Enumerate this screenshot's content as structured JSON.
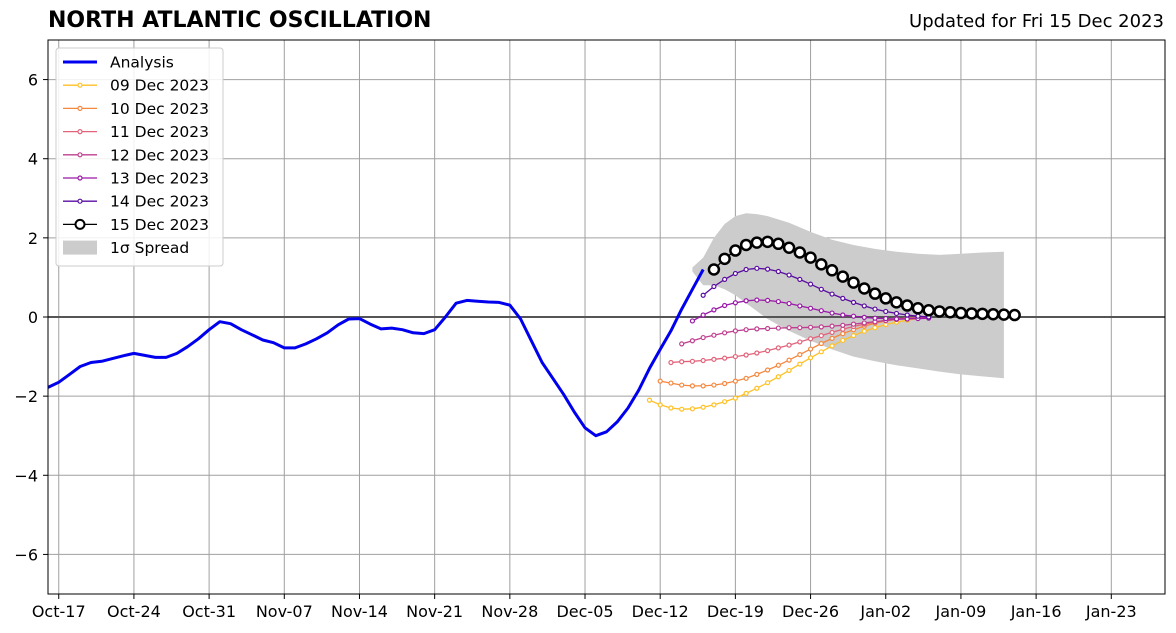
{
  "header": {
    "title": "NORTH ATLANTIC OSCILLATION",
    "updated": "Updated for Fri 15 Dec 2023"
  },
  "chart_data": {
    "type": "line",
    "title": "NORTH ATLANTIC OSCILLATION",
    "subtitle": "Updated for Fri 15 Dec 2023",
    "xlabel": "",
    "ylabel": "",
    "ylim": [
      -7,
      7
    ],
    "xlim": [
      "2023-10-16",
      "2024-01-28"
    ],
    "grid": true,
    "legend_position": "top-left",
    "x_ticks": [
      "Oct-17",
      "Oct-24",
      "Oct-31",
      "Nov-07",
      "Nov-14",
      "Nov-21",
      "Nov-28",
      "Dec-05",
      "Dec-12",
      "Dec-19",
      "Dec-26",
      "Jan-02",
      "Jan-09",
      "Jan-16",
      "Jan-23"
    ],
    "x_tick_dates": [
      "2023-10-17",
      "2023-10-24",
      "2023-10-31",
      "2023-11-07",
      "2023-11-14",
      "2023-11-21",
      "2023-11-28",
      "2023-12-05",
      "2023-12-12",
      "2023-12-19",
      "2023-12-26",
      "2024-01-02",
      "2024-01-09",
      "2024-01-16",
      "2024-01-23"
    ],
    "y_ticks": [
      "6",
      "4",
      "2",
      "0",
      "−2",
      "−4",
      "−6"
    ],
    "y_tick_values": [
      6,
      4,
      2,
      0,
      -2,
      -4,
      -6
    ],
    "zero_line": 0,
    "spread": {
      "name": "1σ Spread",
      "color": "#cccccc",
      "start": "2023-12-15",
      "points": [
        [
          "2023-12-15",
          1.25,
          1.15
        ],
        [
          "2023-12-16",
          1.5,
          0.8
        ],
        [
          "2023-12-17",
          2.0,
          0.8
        ],
        [
          "2023-12-18",
          2.35,
          0.7
        ],
        [
          "2023-12-19",
          2.55,
          0.55
        ],
        [
          "2023-12-20",
          2.62,
          0.35
        ],
        [
          "2023-12-21",
          2.6,
          0.15
        ],
        [
          "2023-12-22",
          2.55,
          -0.05
        ],
        [
          "2023-12-24",
          2.38,
          -0.35
        ],
        [
          "2023-12-26",
          2.15,
          -0.6
        ],
        [
          "2023-12-28",
          1.95,
          -0.82
        ],
        [
          "2023-12-30",
          1.82,
          -1.0
        ],
        [
          "2024-01-01",
          1.72,
          -1.12
        ],
        [
          "2024-01-03",
          1.65,
          -1.22
        ],
        [
          "2024-01-05",
          1.6,
          -1.3
        ],
        [
          "2024-01-07",
          1.57,
          -1.38
        ],
        [
          "2024-01-09",
          1.6,
          -1.45
        ],
        [
          "2024-01-11",
          1.63,
          -1.5
        ],
        [
          "2024-01-13",
          1.65,
          -1.55
        ]
      ]
    },
    "series": [
      {
        "name": "Analysis",
        "color": "#0000ee",
        "width": 3,
        "marker": "none",
        "points": [
          [
            "2023-10-16",
            -1.78
          ],
          [
            "2023-10-17",
            -1.65
          ],
          [
            "2023-10-18",
            -1.45
          ],
          [
            "2023-10-19",
            -1.25
          ],
          [
            "2023-10-20",
            -1.15
          ],
          [
            "2023-10-21",
            -1.12
          ],
          [
            "2023-10-22",
            -1.05
          ],
          [
            "2023-10-23",
            -0.98
          ],
          [
            "2023-10-24",
            -0.92
          ],
          [
            "2023-10-25",
            -0.97
          ],
          [
            "2023-10-26",
            -1.02
          ],
          [
            "2023-10-27",
            -1.02
          ],
          [
            "2023-10-28",
            -0.92
          ],
          [
            "2023-10-29",
            -0.75
          ],
          [
            "2023-10-30",
            -0.55
          ],
          [
            "2023-10-31",
            -0.32
          ],
          [
            "2023-11-01",
            -0.12
          ],
          [
            "2023-11-02",
            -0.17
          ],
          [
            "2023-11-03",
            -0.32
          ],
          [
            "2023-11-04",
            -0.45
          ],
          [
            "2023-11-05",
            -0.58
          ],
          [
            "2023-11-06",
            -0.65
          ],
          [
            "2023-11-07",
            -0.78
          ],
          [
            "2023-11-08",
            -0.78
          ],
          [
            "2023-11-09",
            -0.68
          ],
          [
            "2023-11-10",
            -0.55
          ],
          [
            "2023-11-11",
            -0.4
          ],
          [
            "2023-11-12",
            -0.2
          ],
          [
            "2023-11-13",
            -0.05
          ],
          [
            "2023-11-14",
            -0.04
          ],
          [
            "2023-11-15",
            -0.18
          ],
          [
            "2023-11-16",
            -0.3
          ],
          [
            "2023-11-17",
            -0.28
          ],
          [
            "2023-11-18",
            -0.32
          ],
          [
            "2023-11-19",
            -0.4
          ],
          [
            "2023-11-20",
            -0.42
          ],
          [
            "2023-11-21",
            -0.32
          ],
          [
            "2023-11-22",
            0.0
          ],
          [
            "2023-11-23",
            0.35
          ],
          [
            "2023-11-24",
            0.42
          ],
          [
            "2023-11-25",
            0.4
          ],
          [
            "2023-11-26",
            0.38
          ],
          [
            "2023-11-27",
            0.37
          ],
          [
            "2023-11-28",
            0.3
          ],
          [
            "2023-11-29",
            -0.05
          ],
          [
            "2023-11-30",
            -0.6
          ],
          [
            "2023-12-01",
            -1.15
          ],
          [
            "2023-12-02",
            -1.55
          ],
          [
            "2023-12-03",
            -1.95
          ],
          [
            "2023-12-04",
            -2.4
          ],
          [
            "2023-12-05",
            -2.8
          ],
          [
            "2023-12-06",
            -3.0
          ],
          [
            "2023-12-07",
            -2.9
          ],
          [
            "2023-12-08",
            -2.65
          ],
          [
            "2023-12-09",
            -2.3
          ],
          [
            "2023-12-10",
            -1.85
          ],
          [
            "2023-12-11",
            -1.3
          ],
          [
            "2023-12-12",
            -0.82
          ],
          [
            "2023-12-13",
            -0.35
          ],
          [
            "2023-12-14",
            0.2
          ],
          [
            "2023-12-15",
            0.7
          ],
          [
            "2023-12-16",
            1.2
          ]
        ]
      },
      {
        "name": "09 Dec 2023",
        "color": "#ffc125",
        "width": 1.3,
        "marker": "small",
        "start": "2023-12-11",
        "values": [
          -2.1,
          -2.22,
          -2.3,
          -2.33,
          -2.32,
          -2.28,
          -2.22,
          -2.14,
          -2.05,
          -1.93,
          -1.8,
          -1.66,
          -1.51,
          -1.35,
          -1.19,
          -1.03,
          -0.88,
          -0.73,
          -0.59,
          -0.47,
          -0.36,
          -0.27,
          -0.19,
          -0.13,
          -0.08,
          -0.04,
          -0.02
        ]
      },
      {
        "name": "10 Dec 2023",
        "color": "#f5883f",
        "width": 1.3,
        "marker": "small",
        "start": "2023-12-12",
        "values": [
          -1.62,
          -1.67,
          -1.72,
          -1.74,
          -1.74,
          -1.72,
          -1.68,
          -1.62,
          -1.55,
          -1.45,
          -1.34,
          -1.22,
          -1.09,
          -0.95,
          -0.81,
          -0.67,
          -0.54,
          -0.42,
          -0.32,
          -0.23,
          -0.16,
          -0.1,
          -0.06,
          -0.03,
          -0.01,
          0.0
        ]
      },
      {
        "name": "11 Dec 2023",
        "color": "#e3637a",
        "width": 1.3,
        "marker": "small",
        "start": "2023-12-13",
        "values": [
          -1.15,
          -1.13,
          -1.12,
          -1.1,
          -1.07,
          -1.04,
          -1.0,
          -0.96,
          -0.91,
          -0.85,
          -0.78,
          -0.71,
          -0.63,
          -0.55,
          -0.47,
          -0.39,
          -0.31,
          -0.24,
          -0.18,
          -0.13,
          -0.08,
          -0.05,
          -0.03,
          -0.01,
          0.0
        ]
      },
      {
        "name": "12 Dec 2023",
        "color": "#bf3f8f",
        "width": 1.3,
        "marker": "small",
        "start": "2023-12-14",
        "values": [
          -0.68,
          -0.6,
          -0.52,
          -0.46,
          -0.4,
          -0.35,
          -0.32,
          -0.3,
          -0.29,
          -0.28,
          -0.27,
          -0.27,
          -0.26,
          -0.25,
          -0.23,
          -0.21,
          -0.18,
          -0.15,
          -0.12,
          -0.09,
          -0.06,
          -0.04,
          -0.02,
          -0.01
        ]
      },
      {
        "name": "13 Dec 2023",
        "color": "#9a19a8",
        "width": 1.3,
        "marker": "small",
        "start": "2023-12-15",
        "values": [
          -0.1,
          0.05,
          0.18,
          0.29,
          0.36,
          0.41,
          0.43,
          0.42,
          0.39,
          0.34,
          0.28,
          0.22,
          0.16,
          0.1,
          0.05,
          0.02,
          -0.01,
          -0.03,
          -0.04,
          -0.05,
          -0.05,
          -0.04,
          -0.03
        ]
      },
      {
        "name": "14 Dec 2023",
        "color": "#5a0ca0",
        "width": 1.3,
        "marker": "small",
        "start": "2023-12-16",
        "values": [
          0.55,
          0.77,
          0.95,
          1.1,
          1.2,
          1.23,
          1.21,
          1.15,
          1.06,
          0.95,
          0.83,
          0.7,
          0.58,
          0.47,
          0.37,
          0.28,
          0.2,
          0.14,
          0.09,
          0.05,
          0.02,
          0.0
        ]
      },
      {
        "name": "15 Dec 2023",
        "color": "#000000",
        "width": 1.3,
        "marker": "large",
        "start": "2023-12-17",
        "values": [
          1.2,
          1.47,
          1.68,
          1.82,
          1.88,
          1.9,
          1.85,
          1.75,
          1.63,
          1.5,
          1.33,
          1.18,
          1.02,
          0.87,
          0.72,
          0.59,
          0.47,
          0.37,
          0.29,
          0.22,
          0.17,
          0.14,
          0.12,
          0.1,
          0.09,
          0.08,
          0.07,
          0.06,
          0.05
        ]
      }
    ]
  }
}
